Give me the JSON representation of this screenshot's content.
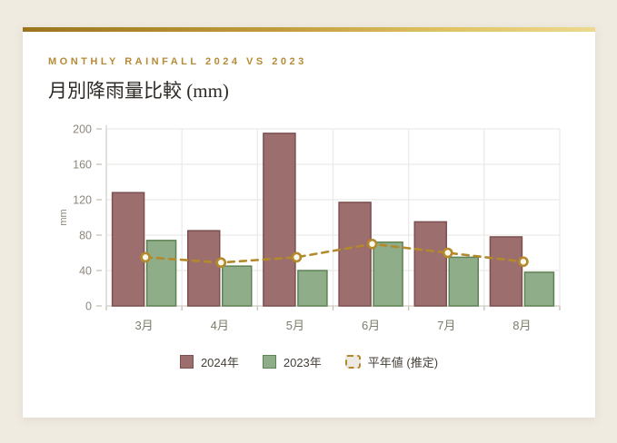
{
  "page": {
    "background_color": "#f0ebe1",
    "card_background": "#ffffff",
    "accent_gradient": [
      "#9c741e",
      "#ecd98f"
    ]
  },
  "header": {
    "eyebrow": "MONTHLY RAINFALL 2024 VS 2023",
    "title": "月別降雨量比較 (mm)",
    "eyebrow_color": "#b58b35"
  },
  "chart_data": {
    "type": "bar",
    "categories": [
      "3月",
      "4月",
      "5月",
      "6月",
      "7月",
      "8月"
    ],
    "series": [
      {
        "name": "2024年",
        "type": "bar",
        "color": "#9d6e6e",
        "border_color": "#7d5050",
        "values": [
          128,
          85,
          195,
          117,
          95,
          78
        ]
      },
      {
        "name": "2023年",
        "type": "bar",
        "color": "#8fad88",
        "border_color": "#5f8256",
        "values": [
          74,
          45,
          40,
          72,
          55,
          38
        ]
      },
      {
        "name": "平年値 (推定)",
        "type": "line",
        "color": "#b3892b",
        "dashed": true,
        "marker": "open-circle",
        "marker_fill": "#faf7ee",
        "values": [
          55,
          49,
          55,
          70,
          60,
          50
        ]
      }
    ],
    "title": "月別降雨量比較 (mm)",
    "xlabel": "",
    "ylabel": "mm",
    "ylim": [
      0,
      200
    ],
    "yticks": [
      0,
      40,
      80,
      120,
      160,
      200
    ],
    "grid": true,
    "grid_color": "#ebebe8",
    "axis_color": "#d8d5ce",
    "tick_label_color": "#8d8779",
    "xtick_label_color": "#7c7c6a",
    "legend_position": "bottom"
  }
}
